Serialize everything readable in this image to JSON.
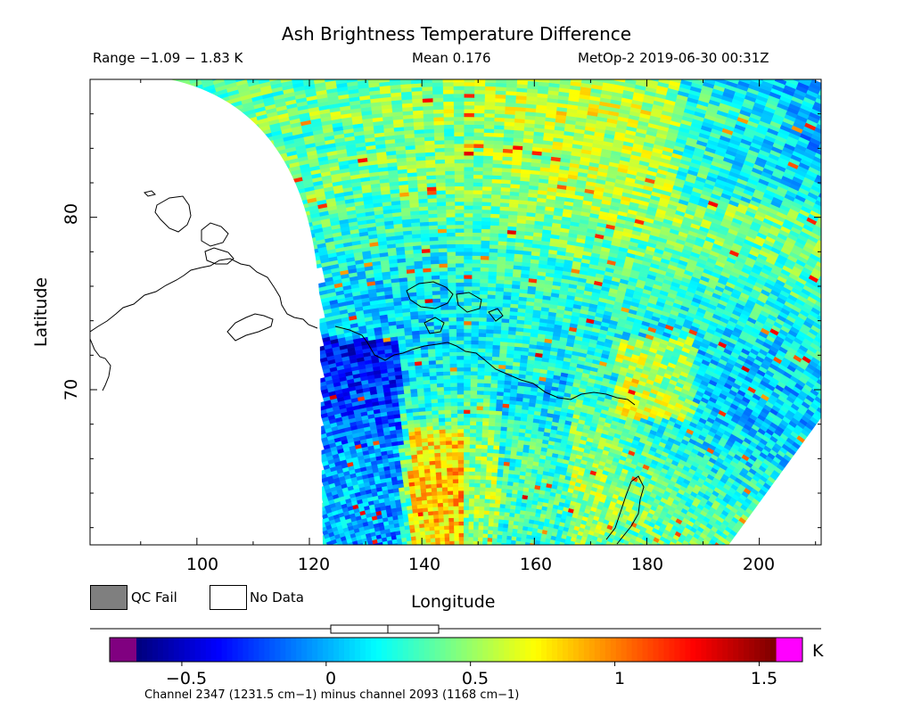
{
  "chart_data": {
    "type": "heatmap",
    "title": "Ash Brightness Temperature Difference",
    "range_text": "Range −1.09 − 1.83 K",
    "mean_text": "Mean 0.176",
    "satellite_text": "MetOp-2 2019-06-30 00:31Z",
    "xlabel": "Longitude",
    "ylabel": "Latitude",
    "xlim": [
      81,
      211
    ],
    "ylim": [
      61,
      88
    ],
    "x_ticks": [
      "100",
      "120",
      "140",
      "160",
      "180",
      "200"
    ],
    "y_ticks": [
      "70",
      "80"
    ],
    "value_range": [
      -1.09,
      1.83
    ],
    "mean": 0.176,
    "colorbar": {
      "ticks": [
        "−0.5",
        "0",
        "0.5",
        "1",
        "1.5"
      ],
      "range": [
        -0.75,
        1.65
      ],
      "unit": "K",
      "description": "Channel 2347 (1231.5 cm−1) minus channel 2093 (1168 cm−1)"
    },
    "legend": {
      "qc_fail": "QC Fail",
      "no_data": "No Data"
    },
    "colors": {
      "qc_fail": "#7f7f7f",
      "no_data": "#ffffff",
      "low_clip": "#800080",
      "high_clip": "#ff00ff"
    }
  }
}
